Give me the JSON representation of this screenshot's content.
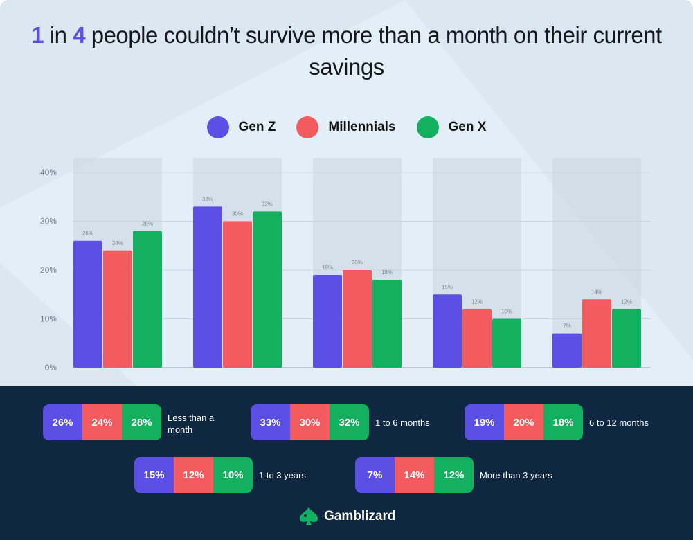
{
  "title": {
    "num1": "1",
    "mid": " in ",
    "num2": "4",
    "rest": " people couldn’t survive more than a month on their current savings"
  },
  "colors": {
    "genz": "#5b4fe5",
    "millennials": "#f45b5f",
    "genx": "#13b05f",
    "accent": "#5b4fe5",
    "footer": "#0f2740"
  },
  "chart_data": {
    "type": "bar",
    "title": "1 in 4 people couldn’t survive more than a month on their current savings",
    "categories": [
      "Less than a month",
      "1 to 6 months",
      "6 to 12 months",
      "1 to 3 years",
      "More than 3 years"
    ],
    "series": [
      {
        "name": "Gen Z",
        "values": [
          26,
          33,
          19,
          15,
          7
        ]
      },
      {
        "name": "Millennials",
        "values": [
          24,
          30,
          20,
          12,
          14
        ]
      },
      {
        "name": "Gen X",
        "values": [
          28,
          32,
          18,
          10,
          12
        ]
      }
    ],
    "yticks": [
      "0%",
      "10%",
      "20%",
      "30%",
      "40%"
    ],
    "ylim": [
      0,
      40
    ],
    "grid": true,
    "legend": "top-center",
    "xlabel": "",
    "ylabel": ""
  },
  "summary": [
    {
      "label": "Less than a month",
      "values": [
        "26%",
        "24%",
        "28%"
      ]
    },
    {
      "label": "1 to 6 months",
      "values": [
        "33%",
        "30%",
        "32%"
      ]
    },
    {
      "label": "6 to 12 months",
      "values": [
        "19%",
        "20%",
        "18%"
      ]
    },
    {
      "label": "1 to 3 years",
      "values": [
        "15%",
        "12%",
        "10%"
      ]
    },
    {
      "label": "More than 3 years",
      "values": [
        "7%",
        "14%",
        "12%"
      ]
    }
  ],
  "brand": "Gamblizard"
}
